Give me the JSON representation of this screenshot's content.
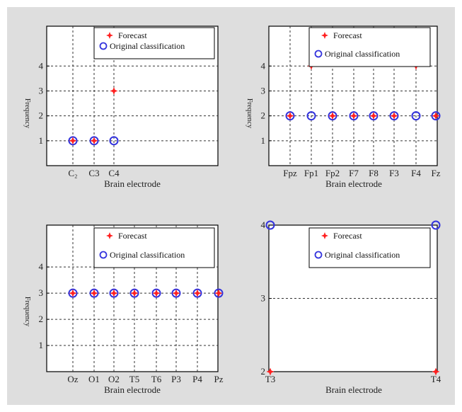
{
  "chart_data": [
    {
      "type": "scatter",
      "xlabel": "Brain electrode",
      "ylabel": "Frequency",
      "categories": [
        "C₂",
        "C3",
        "C4"
      ],
      "yticks": [
        1,
        2,
        3,
        4
      ],
      "ylim": [
        0,
        5.6
      ],
      "grid": true,
      "legend_position": "top-right",
      "series": [
        {
          "name": "Forecast",
          "marker": "star",
          "color": "#ff2020",
          "values": [
            1,
            1,
            3
          ]
        },
        {
          "name": "Original classification",
          "marker": "circle",
          "color": "#3333dd",
          "values": [
            1,
            1,
            1
          ]
        }
      ]
    },
    {
      "type": "scatter",
      "xlabel": "Brain electrode",
      "ylabel": "Frequency",
      "categories": [
        "Fpz",
        "Fp1",
        "Fp2",
        "F7",
        "F8",
        "F3",
        "F4",
        "Fz"
      ],
      "yticks": [
        1,
        2,
        3,
        4
      ],
      "ylim": [
        0,
        5.6
      ],
      "grid": true,
      "legend_position": "top-right",
      "series": [
        {
          "name": "Forecast",
          "marker": "star",
          "color": "#ff2020",
          "values": [
            2,
            4,
            2,
            2,
            2,
            2,
            4,
            2
          ]
        },
        {
          "name": "Original classification",
          "marker": "circle",
          "color": "#3333dd",
          "values": [
            2,
            2,
            2,
            2,
            2,
            2,
            2,
            2
          ]
        }
      ]
    },
    {
      "type": "scatter",
      "xlabel": "Brain electrode",
      "ylabel": "Frequency",
      "categories": [
        "Oz",
        "O1",
        "O2",
        "T5",
        "T6",
        "P3",
        "P4",
        "Pz"
      ],
      "yticks": [
        1,
        2,
        3,
        4
      ],
      "ylim": [
        0,
        5.6
      ],
      "grid": true,
      "legend_position": "top-right",
      "series": [
        {
          "name": "Forecast",
          "marker": "star",
          "color": "#ff2020",
          "values": [
            3,
            3,
            3,
            3,
            3,
            3,
            3,
            3
          ]
        },
        {
          "name": "Original classification",
          "marker": "circle",
          "color": "#3333dd",
          "values": [
            3,
            3,
            3,
            3,
            3,
            3,
            3,
            3
          ]
        }
      ]
    },
    {
      "type": "scatter",
      "xlabel": "Brain electrode",
      "ylabel": "",
      "categories": [
        "T3",
        "T4"
      ],
      "yticks": [
        2,
        3,
        4
      ],
      "ylim": [
        2,
        4
      ],
      "grid": true,
      "legend_position": "top-right",
      "series": [
        {
          "name": "Forecast",
          "marker": "star",
          "color": "#ff2020",
          "values": [
            2,
            2
          ]
        },
        {
          "name": "Original classification",
          "marker": "circle",
          "color": "#3333dd",
          "values": [
            4,
            4
          ]
        }
      ]
    }
  ]
}
